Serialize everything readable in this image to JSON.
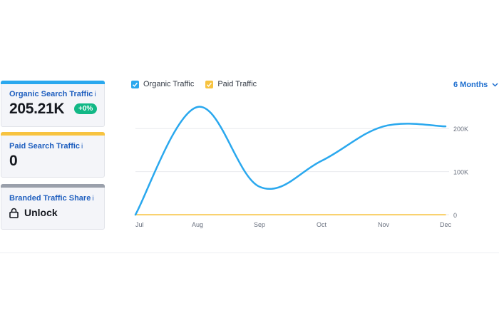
{
  "cards": {
    "organic": {
      "label": "Organic Search Traffic",
      "info": "i",
      "value": "205.21K",
      "badge": "+0%",
      "color": "#2aa8ee"
    },
    "paid": {
      "label": "Paid Search Traffic",
      "info": "i",
      "value": "0",
      "color": "#f7c340"
    },
    "branded": {
      "label": "Branded Traffic Share",
      "info": "i",
      "value": "Unlock",
      "icon": "lock-icon",
      "color": "#9aa0ab"
    }
  },
  "legend": {
    "organic": "Organic Traffic",
    "paid": "Paid Traffic"
  },
  "range_selector": {
    "label": "6 Months",
    "icon": "chevron-down-icon"
  },
  "colors": {
    "organic": "#2aa8ee",
    "paid": "#f7c340",
    "grid": "#e8eaee"
  },
  "chart_data": {
    "type": "line",
    "x": [
      "Jul",
      "Aug",
      "Sep",
      "Oct",
      "Nov",
      "Dec"
    ],
    "y_ticks": [
      "0",
      "100K",
      "200K"
    ],
    "ylim": [
      0,
      250000
    ],
    "series": [
      {
        "name": "Organic Traffic",
        "values": [
          0,
          250000,
          65000,
          125000,
          205000,
          205000
        ]
      },
      {
        "name": "Paid Traffic",
        "values": [
          0,
          0,
          0,
          0,
          0,
          0
        ]
      }
    ],
    "grid": true,
    "legend_position": "top-left"
  }
}
